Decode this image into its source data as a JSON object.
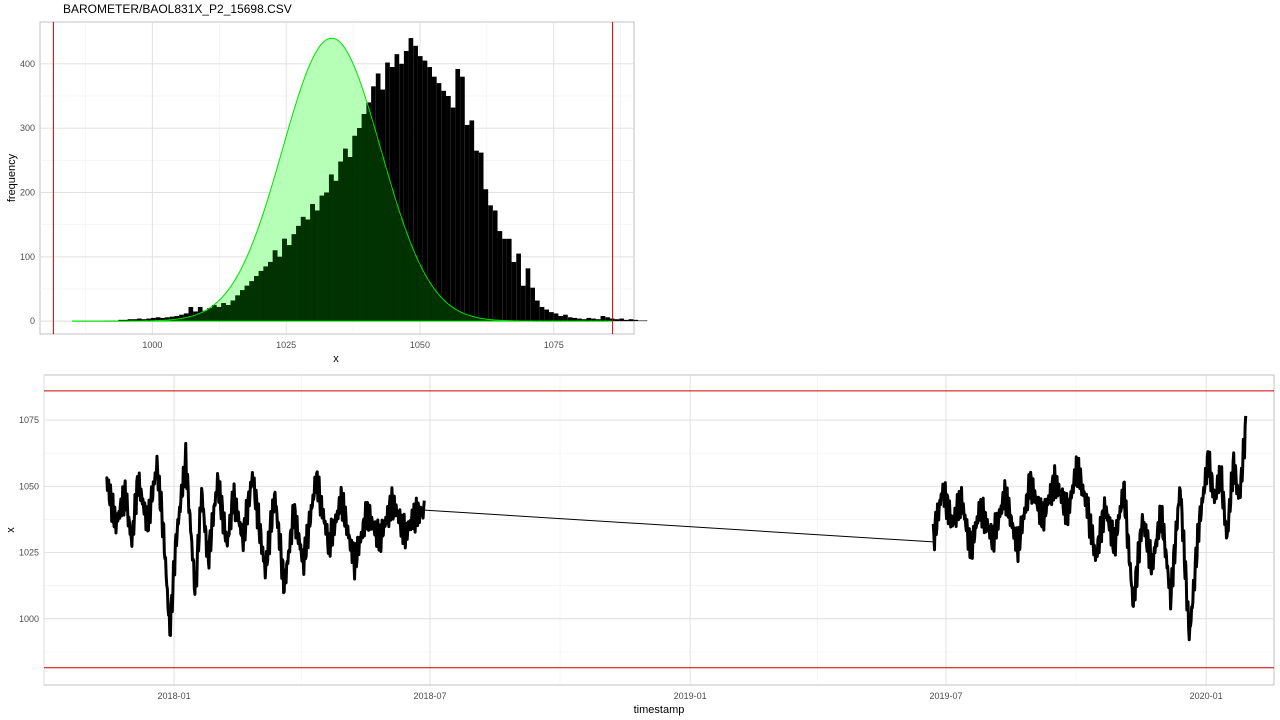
{
  "chart_data": [
    {
      "type": "bar",
      "title": "BAROMETER/BAOL831X_P2_15698.CSV",
      "xlabel": "x",
      "ylabel": "frequency",
      "xlim": [
        979,
        1090
      ],
      "ylim": [
        -20,
        465
      ],
      "x_ticks": [
        1000,
        1025,
        1050,
        1075
      ],
      "y_ticks": [
        0,
        100,
        200,
        300,
        400
      ],
      "limit_lines_x": [
        981.5,
        1086
      ],
      "bins_start": 991,
      "bin_width": 0.875,
      "values": [
        1,
        1,
        1,
        2,
        2,
        3,
        3,
        4,
        3,
        4,
        5,
        6,
        5,
        6,
        7,
        8,
        10,
        12,
        22,
        15,
        22,
        16,
        20,
        25,
        22,
        28,
        25,
        32,
        40,
        48,
        55,
        62,
        70,
        78,
        85,
        92,
        110,
        100,
        128,
        118,
        135,
        148,
        162,
        158,
        182,
        172,
        195,
        200,
        228,
        218,
        248,
        268,
        255,
        288,
        300,
        322,
        340,
        365,
        385,
        360,
        402,
        395,
        415,
        400,
        420,
        440,
        428,
        412,
        405,
        395,
        380,
        370,
        358,
        350,
        332,
        392,
        380,
        305,
        312,
        265,
        262,
        205,
        180,
        172,
        140,
        128,
        128,
        92,
        105,
        55,
        82,
        52,
        32,
        22,
        18,
        14,
        12,
        8,
        10,
        6,
        5,
        4,
        3,
        5,
        4,
        3,
        8,
        6,
        4,
        3,
        4,
        2,
        3,
        2,
        1,
        1
      ],
      "density_curve": {
        "mean": 1033.5,
        "sd": 9.2,
        "peak": 440,
        "xrange": [
          985,
          1085
        ],
        "line_color": "#00e000",
        "fill_color": "#b6ffb6"
      },
      "bar_color": "#000000",
      "overlap_color": "#003300"
    },
    {
      "type": "line",
      "xlabel": "timestamp",
      "ylabel": "x",
      "x_ticks": [
        "2018-01",
        "2018-07",
        "2019-01",
        "2019-07",
        "2020-01"
      ],
      "y_ticks": [
        1000,
        1025,
        1050,
        1075
      ],
      "ylim": [
        975,
        1092
      ],
      "limit_lines_y": [
        981.5,
        1086
      ],
      "line_color": "#000000",
      "series": [
        {
          "segment": "2017-11 to 2018-06",
          "x_range": [
            "2017-11-14",
            "2018-06-27"
          ],
          "points_x_frac": [
            0,
            0.03,
            0.06,
            0.08,
            0.1,
            0.13,
            0.16,
            0.18,
            0.2,
            0.22,
            0.25,
            0.28,
            0.3,
            0.32,
            0.35,
            0.38,
            0.4,
            0.43,
            0.46,
            0.5,
            0.53,
            0.56,
            0.59,
            0.62,
            0.66,
            0.7,
            0.74,
            0.78,
            0.82,
            0.86,
            0.9,
            0.94,
            0.97,
            1.0
          ],
          "values": [
            1053,
            1036,
            1047,
            1029,
            1052,
            1036,
            1058,
            1033,
            995,
            1030,
            1060,
            1010,
            1048,
            1022,
            1052,
            1028,
            1046,
            1030,
            1054,
            1018,
            1047,
            1012,
            1040,
            1021,
            1053,
            1028,
            1045,
            1021,
            1040,
            1030,
            1044,
            1032,
            1039,
            1041
          ]
        },
        {
          "segment": "2019-06 to 2020-01",
          "x_range": [
            "2019-06-22",
            "2020-01-29"
          ],
          "points_x_frac": [
            0,
            0.03,
            0.06,
            0.09,
            0.12,
            0.15,
            0.19,
            0.23,
            0.27,
            0.31,
            0.35,
            0.39,
            0.43,
            0.46,
            0.49,
            0.52,
            0.55,
            0.58,
            0.61,
            0.64,
            0.67,
            0.7,
            0.73,
            0.76,
            0.79,
            0.82,
            0.85,
            0.88,
            0.9,
            0.92,
            0.94,
            0.96,
            0.98,
            1.0
          ],
          "values": [
            1030,
            1049,
            1036,
            1045,
            1026,
            1042,
            1030,
            1047,
            1027,
            1051,
            1038,
            1052,
            1040,
            1057,
            1044,
            1023,
            1042,
            1028,
            1049,
            1005,
            1038,
            1020,
            1040,
            1008,
            1050,
            993,
            1035,
            1060,
            1045,
            1055,
            1030,
            1058,
            1045,
            1072
          ]
        }
      ],
      "gap_line": {
        "from": [
          "2018-06-27",
          1041
        ],
        "to": [
          "2019-06-22",
          1029
        ]
      }
    }
  ]
}
